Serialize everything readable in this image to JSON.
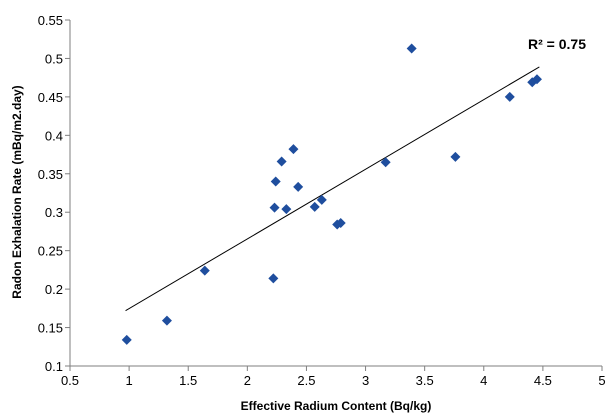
{
  "chart_data": {
    "type": "scatter",
    "xlabel": "Effective Radium Content (Bq/kg)",
    "ylabel": "Radon Exhalation Rate  (mBq/m2.day)",
    "xlim": [
      0.5,
      5
    ],
    "ylim": [
      0.1,
      0.55
    ],
    "x_ticks": [
      "0.5",
      "1",
      "1.5",
      "2",
      "2.5",
      "3",
      "3.5",
      "4",
      "4.5",
      "5"
    ],
    "y_ticks": [
      "0.1",
      "0.15",
      "0.2",
      "0.25",
      "0.3",
      "0.35",
      "0.4",
      "0.45",
      "0.5",
      "0.55"
    ],
    "grid": false,
    "marker_color": "#1F4E9E",
    "series": [
      {
        "marker": "diamond",
        "points": [
          [
            0.98,
            0.134
          ],
          [
            1.32,
            0.159
          ],
          [
            1.64,
            0.224
          ],
          [
            2.22,
            0.214
          ],
          [
            2.23,
            0.306
          ],
          [
            2.24,
            0.34
          ],
          [
            2.29,
            0.366
          ],
          [
            2.33,
            0.304
          ],
          [
            2.39,
            0.382
          ],
          [
            2.43,
            0.333
          ],
          [
            2.57,
            0.307
          ],
          [
            2.63,
            0.316
          ],
          [
            2.76,
            0.284
          ],
          [
            2.79,
            0.286
          ],
          [
            3.17,
            0.365
          ],
          [
            3.39,
            0.513
          ],
          [
            3.76,
            0.372
          ],
          [
            4.22,
            0.45
          ],
          [
            4.41,
            0.469
          ],
          [
            4.45,
            0.473
          ]
        ]
      }
    ],
    "trendline": {
      "type": "linear",
      "x_range": [
        0.97,
        4.47
      ],
      "y_range": [
        0.172,
        0.489
      ],
      "color": "#000000"
    },
    "annotations": [
      {
        "text": "R² = 0.75",
        "placement": "top-right"
      }
    ]
  }
}
